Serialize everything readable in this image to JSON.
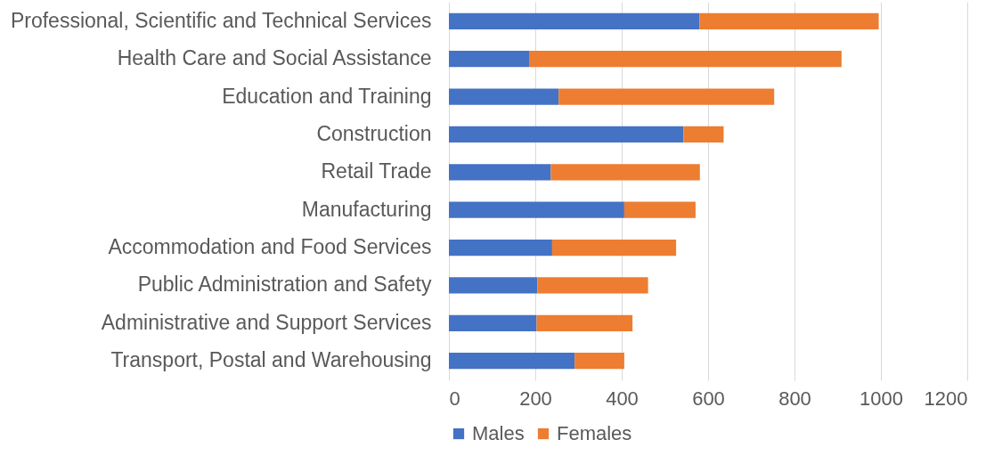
{
  "chart_data": {
    "type": "bar",
    "orientation": "horizontal",
    "stacked": true,
    "categories": [
      "Professional, Scientific and Technical Services",
      "Health Care and Social Assistance",
      "Education and Training",
      "Construction",
      "Retail Trade",
      "Manufacturing",
      "Accommodation and Food Services",
      "Public Administration and Safety",
      "Administrative and Support Services",
      "Transport, Postal and Warehousing"
    ],
    "series": [
      {
        "name": "Males",
        "color": "#4472c4",
        "values": [
          580,
          187,
          254,
          543,
          236,
          406,
          239,
          205,
          203,
          291
        ]
      },
      {
        "name": "Females",
        "color": "#ed7d31",
        "values": [
          415,
          722,
          499,
          93,
          345,
          165,
          287,
          256,
          222,
          115
        ]
      }
    ],
    "xlim": [
      0,
      1200
    ],
    "xticks": [
      0,
      200,
      400,
      600,
      800,
      1000,
      1200
    ],
    "grid": "x",
    "legend": "bottom"
  }
}
